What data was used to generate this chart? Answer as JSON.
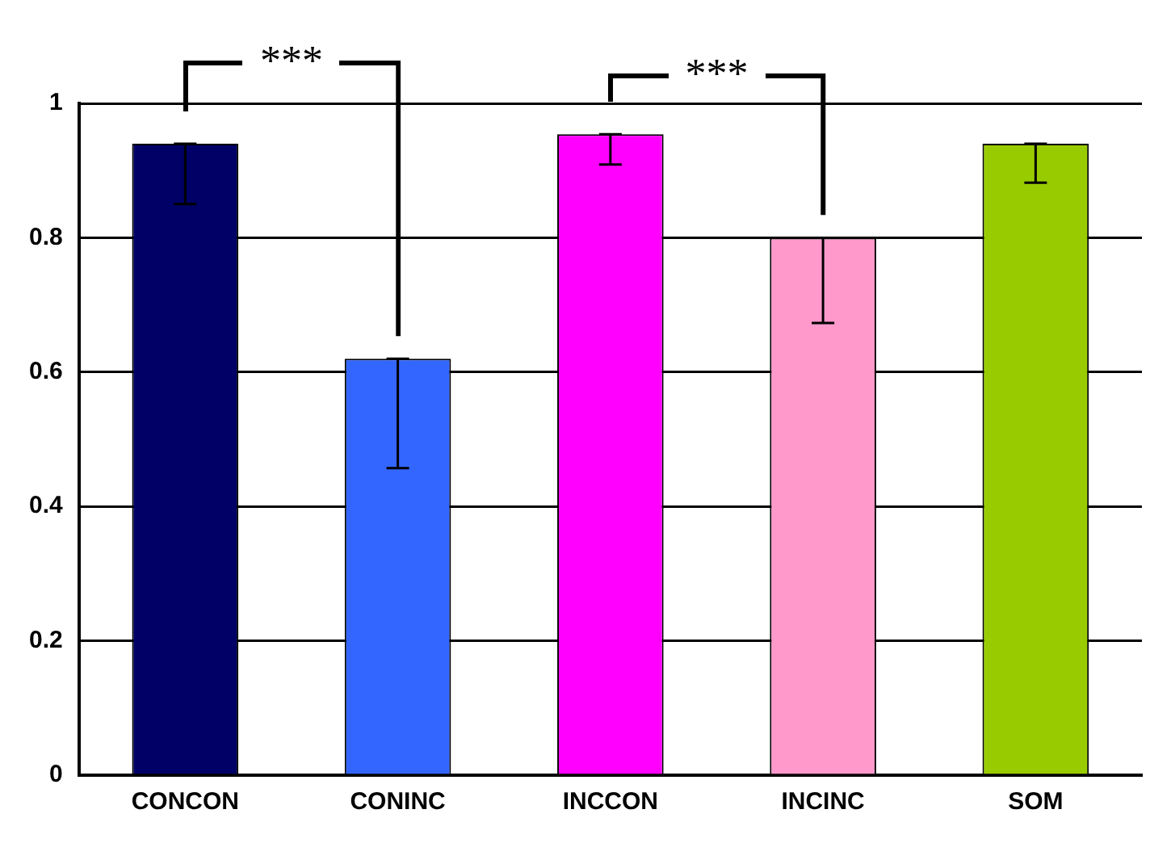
{
  "chart_data": {
    "type": "bar",
    "categories": [
      "CONCON",
      "CONINC",
      "INCCON",
      "INCINC",
      "SOM"
    ],
    "values": [
      0.94,
      0.62,
      0.954,
      0.8,
      0.94
    ],
    "colors": [
      "#000066",
      "#3366ff",
      "#ff00ff",
      "#ff99cc",
      "#99cc00"
    ],
    "errors": [
      [
        0.85,
        0.94
      ],
      [
        0.457,
        0.62
      ],
      [
        0.909,
        0.954
      ],
      [
        0.673,
        0.8
      ],
      [
        0.882,
        0.94
      ]
    ],
    "ylim": [
      0,
      1
    ],
    "yticks": [
      0,
      0.2,
      0.4,
      0.6,
      0.8,
      1
    ],
    "grid": "y",
    "legend": false,
    "annotations": [
      "***",
      "***"
    ]
  }
}
